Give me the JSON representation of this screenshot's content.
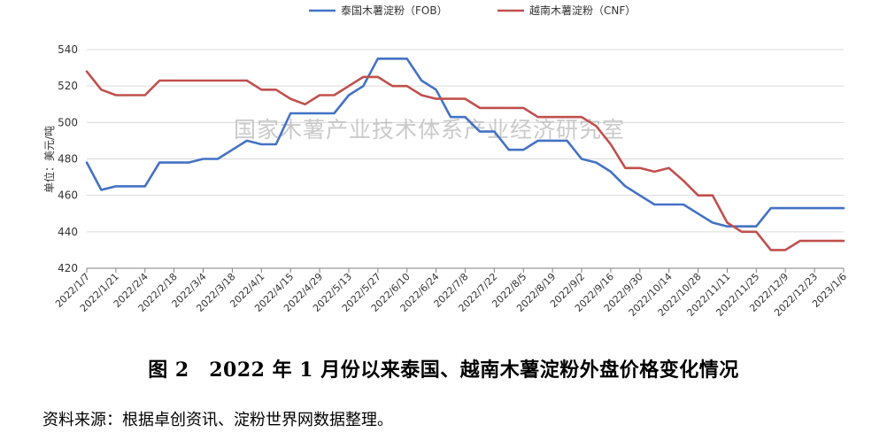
{
  "chart_data": {
    "type": "line",
    "title": "",
    "xlabel": "",
    "ylabel": "单位：美元/吨",
    "ylim": [
      420,
      540
    ],
    "yticks": [
      420,
      440,
      460,
      480,
      500,
      520,
      540
    ],
    "grid": true,
    "legend": "top-center",
    "watermark": "国家木薯产业技术体系产业经济研究室",
    "x": [
      "2022/1/7",
      "2022/1/14",
      "2022/1/21",
      "2022/1/28",
      "2022/2/4",
      "2022/2/11",
      "2022/2/18",
      "2022/2/25",
      "2022/3/4",
      "2022/3/11",
      "2022/3/18",
      "2022/3/25",
      "2022/4/1",
      "2022/4/8",
      "2022/4/15",
      "2022/4/22",
      "2022/4/29",
      "2022/5/6",
      "2022/5/13",
      "2022/5/20",
      "2022/5/27",
      "2022/6/3",
      "2022/6/10",
      "2022/6/17",
      "2022/6/24",
      "2022/7/1",
      "2022/7/8",
      "2022/7/15",
      "2022/7/22",
      "2022/7/29",
      "2022/8/5",
      "2022/8/12",
      "2022/8/19",
      "2022/8/26",
      "2022/9/2",
      "2022/9/9",
      "2022/9/16",
      "2022/9/23",
      "2022/9/30",
      "2022/10/7",
      "2022/10/14",
      "2022/10/21",
      "2022/10/28",
      "2022/11/4",
      "2022/11/11",
      "2022/11/18",
      "2022/11/25",
      "2022/12/2",
      "2022/12/9",
      "2022/12/16",
      "2022/12/23",
      "2022/12/30",
      "2023/1/6"
    ],
    "xtick_labels": [
      "2022/1/7",
      "2022/1/21",
      "2022/2/4",
      "2022/2/18",
      "2022/3/4",
      "2022/3/18",
      "2022/4/1",
      "2022/4/15",
      "2022/4/29",
      "2022/5/13",
      "2022/5/27",
      "2022/6/10",
      "2022/6/24",
      "2022/7/8",
      "2022/7/22",
      "2022/8/5",
      "2022/8/19",
      "2022/9/2",
      "2022/9/16",
      "2022/9/30",
      "2022/10/14",
      "2022/10/28",
      "2022/11/11",
      "2022/11/25",
      "2022/12/9",
      "2022/12/23",
      "2023/1/6"
    ],
    "series": [
      {
        "name": "泰国木薯淀粉（FOB）",
        "color": "#4472c4",
        "values": [
          478,
          463,
          465,
          465,
          465,
          478,
          478,
          478,
          480,
          480,
          485,
          490,
          488,
          488,
          505,
          505,
          505,
          505,
          515,
          520,
          535,
          535,
          535,
          523,
          518,
          503,
          503,
          495,
          495,
          485,
          485,
          490,
          490,
          490,
          480,
          478,
          473,
          465,
          460,
          455,
          455,
          455,
          450,
          445,
          443,
          443,
          443,
          453,
          453,
          453,
          453,
          453,
          453
        ]
      },
      {
        "name": "越南木薯淀粉（CNF）",
        "color": "#c0504d",
        "values": [
          528,
          518,
          515,
          515,
          515,
          523,
          523,
          523,
          523,
          523,
          523,
          523,
          518,
          518,
          513,
          510,
          515,
          515,
          520,
          525,
          525,
          520,
          520,
          515,
          513,
          513,
          513,
          508,
          508,
          508,
          508,
          503,
          503,
          503,
          503,
          498,
          488,
          475,
          475,
          473,
          475,
          468,
          460,
          460,
          445,
          440,
          440,
          430,
          430,
          435,
          435,
          435,
          435
        ]
      }
    ]
  },
  "caption": "图 2　2022 年 1 月份以来泰国、越南木薯淀粉外盘价格变化情况",
  "source": "资料来源：根据卓创资讯、淀粉世界网数据整理。"
}
